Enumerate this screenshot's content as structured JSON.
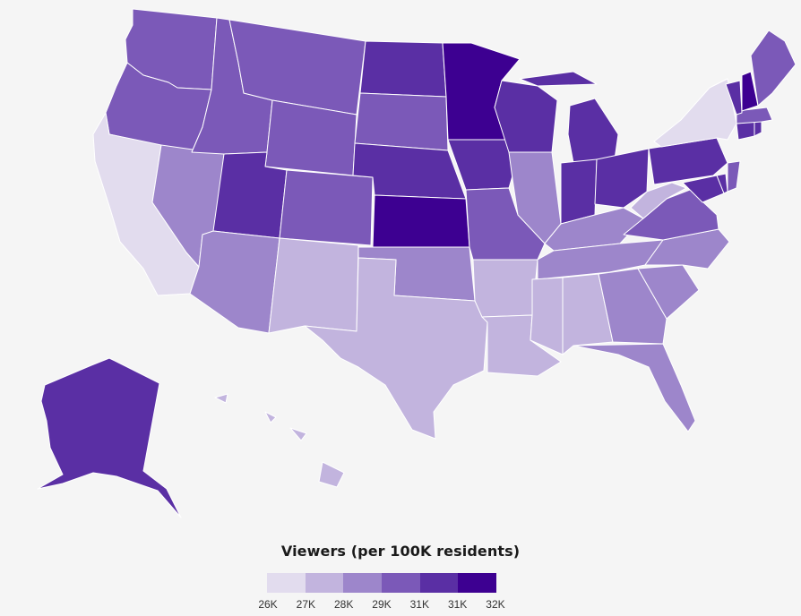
{
  "legend": {
    "title": "Viewers (per 100K residents)",
    "colors": [
      "#e2dcee",
      "#c2b4de",
      "#9d86cb",
      "#7b59b8",
      "#5a2fa4",
      "#3d0091"
    ],
    "ticks": [
      "26K",
      "27K",
      "28K",
      "29K",
      "31K",
      "31K",
      "32K"
    ]
  },
  "states": [
    {
      "name": "Washington",
      "level": 3
    },
    {
      "name": "Oregon",
      "level": 3
    },
    {
      "name": "California",
      "level": 0
    },
    {
      "name": "Nevada",
      "level": 2
    },
    {
      "name": "Idaho",
      "level": 3
    },
    {
      "name": "Montana",
      "level": 3
    },
    {
      "name": "Wyoming",
      "level": 3
    },
    {
      "name": "Utah",
      "level": 4
    },
    {
      "name": "Arizona",
      "level": 2
    },
    {
      "name": "Colorado",
      "level": 3
    },
    {
      "name": "New Mexico",
      "level": 1
    },
    {
      "name": "North Dakota",
      "level": 4
    },
    {
      "name": "South Dakota",
      "level": 3
    },
    {
      "name": "Nebraska",
      "level": 4
    },
    {
      "name": "Kansas",
      "level": 5
    },
    {
      "name": "Oklahoma",
      "level": 2
    },
    {
      "name": "Texas",
      "level": 1
    },
    {
      "name": "Minnesota",
      "level": 5
    },
    {
      "name": "Iowa",
      "level": 4
    },
    {
      "name": "Missouri",
      "level": 3
    },
    {
      "name": "Arkansas",
      "level": 1
    },
    {
      "name": "Louisiana",
      "level": 1
    },
    {
      "name": "Wisconsin",
      "level": 4
    },
    {
      "name": "Illinois",
      "level": 2
    },
    {
      "name": "Michigan",
      "level": 4
    },
    {
      "name": "Indiana",
      "level": 4
    },
    {
      "name": "Ohio",
      "level": 4
    },
    {
      "name": "Kentucky",
      "level": 2
    },
    {
      "name": "Tennessee",
      "level": 2
    },
    {
      "name": "Mississippi",
      "level": 1
    },
    {
      "name": "Alabama",
      "level": 1
    },
    {
      "name": "Georgia",
      "level": 2
    },
    {
      "name": "Florida",
      "level": 2
    },
    {
      "name": "South Carolina",
      "level": 2
    },
    {
      "name": "North Carolina",
      "level": 2
    },
    {
      "name": "Virginia",
      "level": 3
    },
    {
      "name": "West Virginia",
      "level": 1
    },
    {
      "name": "Pennsylvania",
      "level": 4
    },
    {
      "name": "New York",
      "level": 0
    },
    {
      "name": "Maryland",
      "level": 4
    },
    {
      "name": "Delaware",
      "level": 4
    },
    {
      "name": "New Jersey",
      "level": 3
    },
    {
      "name": "Connecticut",
      "level": 4
    },
    {
      "name": "Rhode Island",
      "level": 4
    },
    {
      "name": "Massachusetts",
      "level": 3
    },
    {
      "name": "Vermont",
      "level": 4
    },
    {
      "name": "New Hampshire",
      "level": 5
    },
    {
      "name": "Maine",
      "level": 3
    },
    {
      "name": "Alaska",
      "level": 4
    },
    {
      "name": "Hawaii",
      "level": 1
    }
  ]
}
